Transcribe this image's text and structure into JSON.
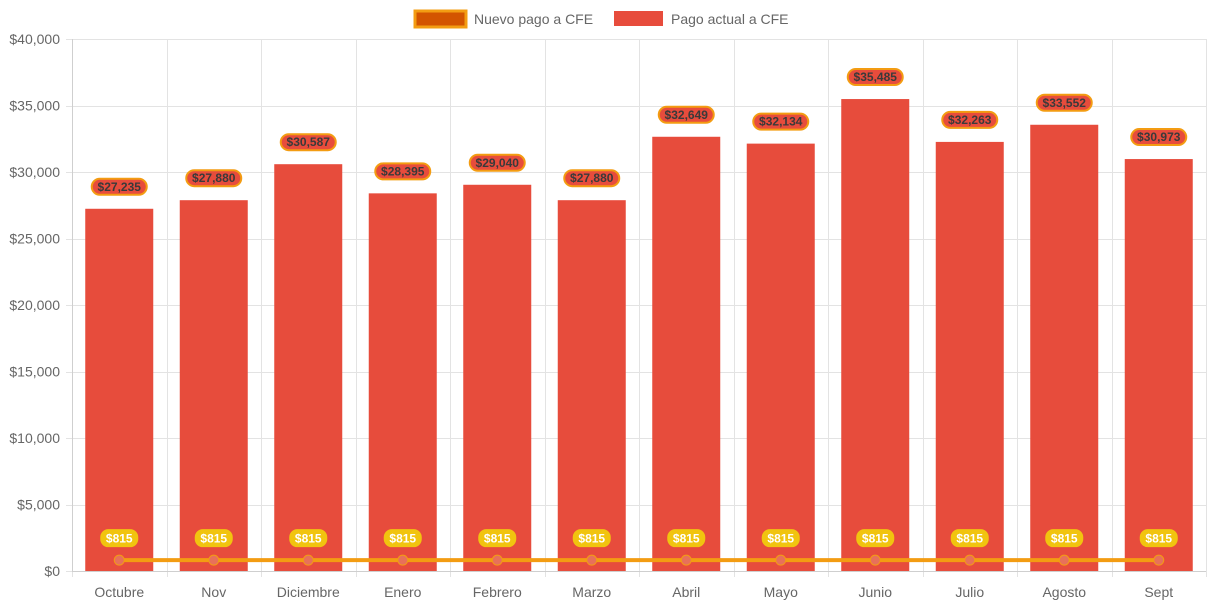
{
  "chart_data": {
    "type": "bar",
    "categories": [
      "Octubre",
      "Nov",
      "Diciembre",
      "Enero",
      "Febrero",
      "Marzo",
      "Abril",
      "Mayo",
      "Junio",
      "Julio",
      "Agosto",
      "Sept"
    ],
    "series": [
      {
        "name": "Nuevo pago a CFE",
        "type": "line",
        "values": [
          815,
          815,
          815,
          815,
          815,
          815,
          815,
          815,
          815,
          815,
          815,
          815
        ],
        "labels": [
          "$815",
          "$815",
          "$815",
          "$815",
          "$815",
          "$815",
          "$815",
          "$815",
          "$815",
          "$815",
          "$815",
          "$815"
        ],
        "color": "#F39C12",
        "point_color": "#E8705A",
        "legend_fill": "#D35400",
        "label_bg": "#F1C40F"
      },
      {
        "name": "Pago actual a CFE",
        "type": "bar",
        "values": [
          27235,
          27880,
          30587,
          28395,
          29040,
          27880,
          32649,
          32134,
          35485,
          32263,
          33552,
          30973
        ],
        "labels": [
          "$27,235",
          "$27,880",
          "$30,587",
          "$28,395",
          "$29,040",
          "$27,880",
          "$32,649",
          "$32,134",
          "$35,485",
          "$32,263",
          "$33,552",
          "$30,973"
        ],
        "color": "#E74C3C",
        "label_border": "#F39C12"
      }
    ],
    "ylim": [
      0,
      40000
    ],
    "yticks": [
      0,
      5000,
      10000,
      15000,
      20000,
      25000,
      30000,
      35000,
      40000
    ],
    "ytick_labels": [
      "$0",
      "$5,000",
      "$10,000",
      "$15,000",
      "$20,000",
      "$25,000",
      "$30,000",
      "$35,000",
      "$40,000"
    ],
    "title": "",
    "xlabel": "",
    "ylabel": "",
    "grid": true,
    "legend_position": "top-center"
  }
}
